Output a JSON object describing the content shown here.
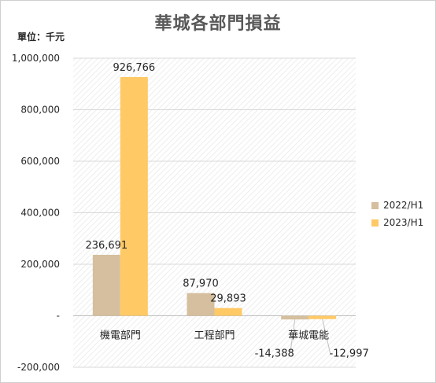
{
  "chart_data": {
    "type": "bar",
    "title": "華城各部門損益",
    "unit_label": "單位：千元",
    "categories": [
      "機電部門",
      "工程部門",
      "華城電能"
    ],
    "series": [
      {
        "name": "2022/H1",
        "color": "#d6bf9e",
        "values": [
          236691,
          87970,
          -14388
        ],
        "labels": [
          "236,691",
          "87,970",
          "-14,388"
        ]
      },
      {
        "name": "2023/H1",
        "color": "#ffc966",
        "values": [
          926766,
          29893,
          -12997
        ],
        "labels": [
          "926,766",
          "29,893",
          "-12,997"
        ]
      }
    ],
    "yticks": [
      1000000,
      800000,
      600000,
      400000,
      200000,
      0,
      -200000
    ],
    "ytick_labels": [
      "1,000,000",
      "800,000",
      "600,000",
      "400,000",
      "200,000",
      "-",
      "-200,000"
    ],
    "ylim": [
      -200000,
      1000000
    ],
    "grid": true,
    "legend_position": "right"
  }
}
